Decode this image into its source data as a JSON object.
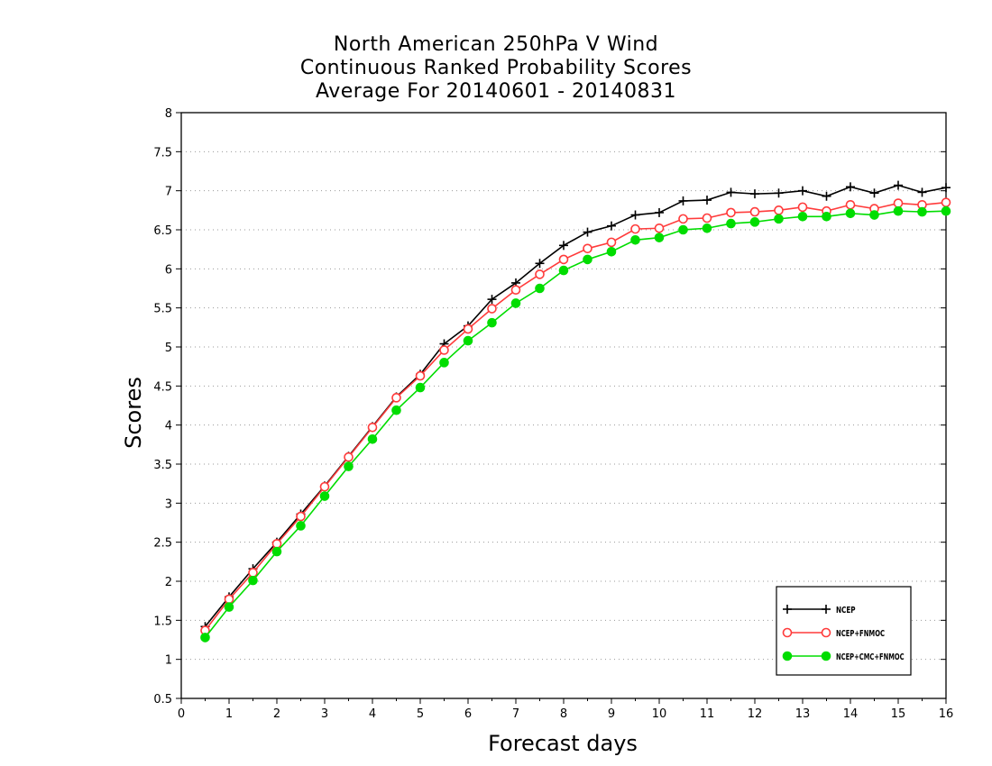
{
  "chart_data": {
    "type": "line",
    "title_lines": [
      "North American 250hPa V Wind",
      "Continuous Ranked Probability Scores",
      "Average For 20140601 - 20140831"
    ],
    "xlabel": "Forecast days",
    "ylabel": "Scores",
    "xlim": [
      0,
      16
    ],
    "ylim": [
      0.5,
      8
    ],
    "xticks": [
      "0",
      "1",
      "2",
      "3",
      "4",
      "5",
      "6",
      "7",
      "8",
      "9",
      "10",
      "11",
      "12",
      "13",
      "14",
      "15",
      "16"
    ],
    "yticks": [
      "0.5",
      "1",
      "1.5",
      "2",
      "2.5",
      "3",
      "3.5",
      "4",
      "4.5",
      "5",
      "5.5",
      "6",
      "6.5",
      "7",
      "7.5",
      "8"
    ],
    "grid": "horizontal dotted",
    "legend_position": "bottom-right",
    "x": [
      0.5,
      1,
      1.5,
      2,
      2.5,
      3,
      3.5,
      4,
      4.5,
      5,
      5.5,
      6,
      6.5,
      7,
      7.5,
      8,
      8.5,
      9,
      9.5,
      10,
      10.5,
      11,
      11.5,
      12,
      12.5,
      13,
      13.5,
      14,
      14.5,
      15,
      15.5,
      16
    ],
    "series": [
      {
        "name": "NCEP",
        "color": "#000000",
        "marker": "plus",
        "values": [
          1.42,
          1.8,
          2.16,
          2.5,
          2.86,
          3.22,
          3.6,
          3.98,
          4.36,
          4.65,
          5.04,
          5.27,
          5.61,
          5.82,
          6.07,
          6.3,
          6.47,
          6.55,
          6.69,
          6.72,
          6.87,
          6.88,
          6.98,
          6.96,
          6.97,
          7.0,
          6.93,
          7.05,
          6.97,
          7.07,
          6.98,
          7.04
        ]
      },
      {
        "name": "NCEP+FNMOC",
        "color": "#ff3b3b",
        "marker": "open-circle",
        "values": [
          1.37,
          1.77,
          2.11,
          2.48,
          2.83,
          3.21,
          3.59,
          3.97,
          4.35,
          4.63,
          4.96,
          5.23,
          5.49,
          5.73,
          5.93,
          6.12,
          6.26,
          6.34,
          6.51,
          6.52,
          6.64,
          6.65,
          6.72,
          6.73,
          6.75,
          6.79,
          6.74,
          6.82,
          6.77,
          6.84,
          6.82,
          6.85
        ]
      },
      {
        "name": "NCEP+CMC+FNMOC",
        "color": "#00dd00",
        "marker": "filled-circle",
        "values": [
          1.28,
          1.67,
          2.01,
          2.38,
          2.71,
          3.09,
          3.47,
          3.82,
          4.19,
          4.48,
          4.8,
          5.08,
          5.31,
          5.56,
          5.75,
          5.98,
          6.12,
          6.22,
          6.37,
          6.4,
          6.5,
          6.52,
          6.58,
          6.6,
          6.64,
          6.67,
          6.67,
          6.71,
          6.69,
          6.74,
          6.73,
          6.74
        ]
      }
    ]
  }
}
